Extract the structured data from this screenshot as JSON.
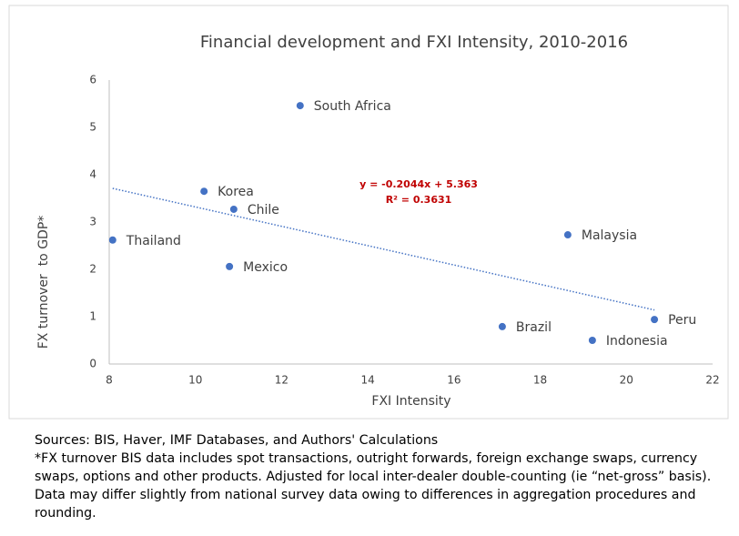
{
  "chart_data": {
    "type": "scatter",
    "title": "Financial development and FXI Intensity, 2010-2016",
    "x_label": "FXI Intensity",
    "y_label": "FX turnover  to GDP*",
    "labels": [
      "South Africa",
      "Korea",
      "Chile",
      "Thailand",
      "Mexico",
      "Malaysia",
      "Brazil",
      "Peru",
      "Indonesia"
    ],
    "x": [
      12.43,
      10.2,
      10.89,
      8.08,
      10.79,
      18.64,
      17.12,
      20.65,
      19.21
    ],
    "y": [
      5.46,
      3.65,
      3.27,
      2.62,
      2.06,
      2.73,
      0.79,
      0.94,
      0.5
    ],
    "color": "#4472c4",
    "xlim": [
      8,
      22
    ],
    "xticks": [
      8,
      10,
      12,
      14,
      16,
      18,
      20,
      22
    ],
    "ylim": [
      0,
      6
    ],
    "yticks": [
      0,
      1,
      2,
      3,
      4,
      5,
      6
    ],
    "grid": false,
    "trendline": {
      "slope": -0.2044,
      "intercept": 5.363,
      "equation": "y = -0.2044x + 5.363",
      "r_squared": "R² = 0.3631",
      "color": "#4472c4",
      "label_color": "#c00000"
    }
  },
  "notes": [
    "Sources: BIS, Haver, IMF Databases, and Authors' Calculations",
    "*FX turnover BIS data includes spot transactions, outright forwards, foreign exchange swaps, currency swaps, options and  other products.  Adjusted for local inter-dealer double-counting (ie “net-gross” basis). Data may differ slightly from national survey data owing to differences in aggregation procedures and rounding."
  ]
}
